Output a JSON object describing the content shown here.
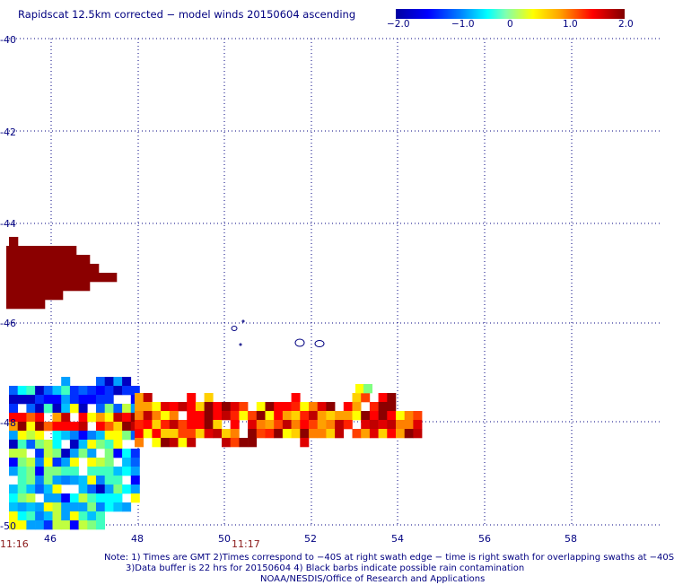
{
  "title": "Rapidscat 12.5km corrected − model winds 20150604 ascending",
  "colorbar": {
    "labels": [
      "−2.0",
      "−1.0",
      "0",
      "1.0",
      "2.0"
    ],
    "range": [
      -2.0,
      2.0
    ],
    "colors": [
      "#0000a0",
      "#0000ff",
      "#0080ff",
      "#00ffff",
      "#7fffb0",
      "#ffff00",
      "#ffa000",
      "#ff0000",
      "#800000"
    ]
  },
  "axes": {
    "lat_labels": [
      "-40",
      "-42",
      "-44",
      "-46",
      "-48",
      "-50"
    ],
    "lon_labels": [
      "46",
      "48",
      "50",
      "52",
      "54",
      "56",
      "58"
    ],
    "grid": "dotted"
  },
  "times": [
    "11:16",
    "11:17"
  ],
  "notes": {
    "line1": "Note: 1) Times are GMT 2)Times correspond to −40S at right swath edge − time is right swath for overlapping swaths at −40S",
    "line2": "3)Data buffer is 22 hrs for 20150604 4) Black barbs indicate possible rain contamination",
    "line3": "NOAA/NESDIS/Office of Research and Applications"
  }
}
